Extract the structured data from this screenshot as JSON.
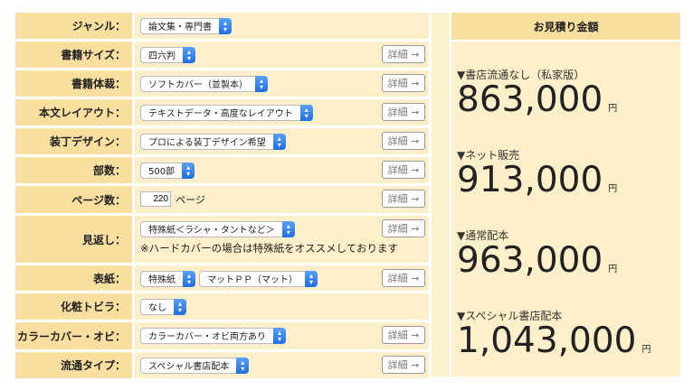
{
  "form": {
    "rows": [
      {
        "label": "ジャンル：",
        "selects": [
          "論文集・専門書"
        ],
        "detail": false
      },
      {
        "label": "書籍サイズ：",
        "selects": [
          "四六判"
        ],
        "detail": true
      },
      {
        "label": "書籍体裁：",
        "selects": [
          "ソフトカバー（並製本）"
        ],
        "detail": true
      },
      {
        "label": "本文レイアウト：",
        "selects": [
          "テキストデータ・高度なレイアウト"
        ],
        "detail": true
      },
      {
        "label": "装丁デザイン：",
        "selects": [
          "プロによる装丁デザイン希望"
        ],
        "detail": true
      },
      {
        "label": "部数：",
        "selects": [
          "500部"
        ],
        "detail": true
      },
      {
        "label": "ページ数：",
        "input": "220",
        "suffix": "ページ",
        "detail": true
      },
      {
        "label": "見返し：",
        "selects": [
          "特殊紙＜ラシャ・タントなど＞"
        ],
        "note": "※ハードカバーの場合は特殊紙をオススメしております",
        "detail": true
      },
      {
        "label": "表紙：",
        "selects": [
          "特殊紙",
          "マットＰＰ（マット）"
        ],
        "detail": true
      },
      {
        "label": "化粧トビラ：",
        "selects": [
          "なし"
        ],
        "detail": false
      },
      {
        "label": "カラーカバー・オビ：",
        "selects": [
          "カラーカバー・オビ両方あり"
        ],
        "detail": true
      },
      {
        "label": "流通タイプ：",
        "selects": [
          "スペシャル書店配本"
        ],
        "detail": true
      }
    ],
    "detail_label": "詳細 →"
  },
  "estimate": {
    "title": "お見積り金額",
    "unit": "円",
    "items": [
      {
        "label": "▼書店流通なし（私家版）",
        "price": "863,000"
      },
      {
        "label": "▼ネット販売",
        "price": "913,000"
      },
      {
        "label": "▼通常配本",
        "price": "963,000"
      },
      {
        "label": "▼スペシャル書店配本",
        "price": "1,043,000"
      }
    ]
  }
}
